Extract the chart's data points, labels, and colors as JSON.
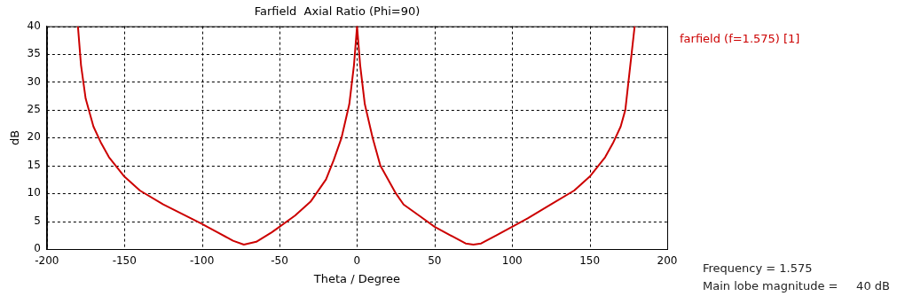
{
  "chart_data": {
    "type": "line",
    "title": "Farfield  Axial Ratio (Phi=90)",
    "xlabel": "Theta / Degree",
    "ylabel": "dB",
    "xlim": [
      -200,
      200
    ],
    "xticks": [
      -200,
      -150,
      -100,
      -50,
      0,
      50,
      100,
      150,
      200
    ],
    "ylim": [
      0,
      40
    ],
    "yticks": [
      0,
      5,
      10,
      15,
      20,
      25,
      30,
      35,
      40
    ],
    "grid": true,
    "legend": "top right",
    "marker": "none",
    "line_style": "solid",
    "annotations": [
      "Frequency = 1.575",
      "Main lobe magnitude =     40 dB"
    ],
    "series": [
      {
        "name": "farfield (f=1.575) [1]",
        "color": "#cc0000",
        "x": [
          -180,
          -178,
          -175,
          -170,
          -165,
          -160,
          -150,
          -140,
          -125,
          -100,
          -90,
          -80,
          -73,
          -65,
          -55,
          -50,
          -40,
          -30,
          -20,
          -15,
          -10,
          -5,
          -2,
          0,
          2,
          5,
          10,
          15,
          20,
          25,
          30,
          40,
          50,
          60,
          70,
          75,
          80,
          90,
          100,
          110,
          125,
          140,
          150,
          160,
          165,
          170,
          173,
          175,
          177,
          179
        ],
        "values": [
          40,
          33,
          27,
          22,
          19,
          16.5,
          13,
          10.5,
          8,
          4.5,
          3,
          1.5,
          0.8,
          1.3,
          3,
          4,
          6,
          8.5,
          12.5,
          16,
          20,
          26,
          33,
          40,
          33,
          26,
          20,
          15,
          12.5,
          10,
          8,
          6,
          4,
          2.5,
          1,
          0.8,
          1,
          2.5,
          4,
          5.5,
          8,
          10.5,
          13,
          16.5,
          19,
          22,
          25,
          30,
          35,
          40
        ]
      }
    ]
  }
}
